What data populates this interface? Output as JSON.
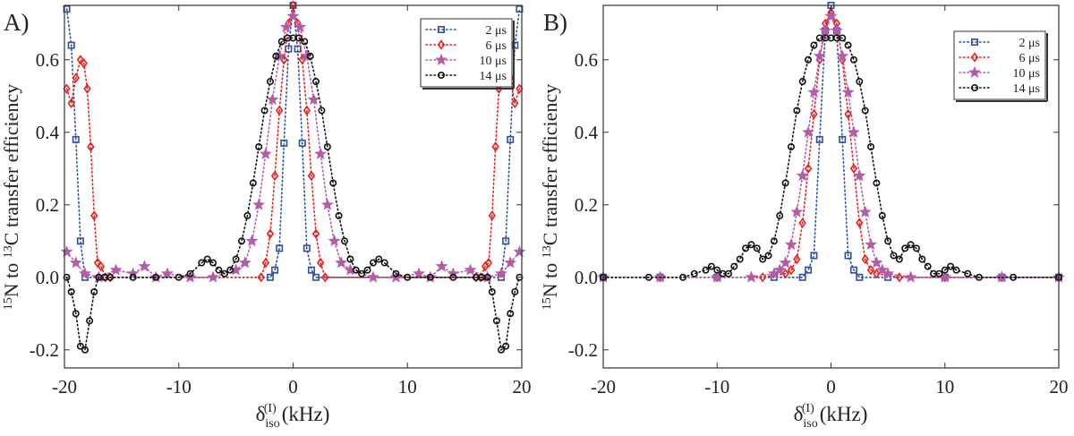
{
  "colors": {
    "2us": "#2e4fa0",
    "6us": "#e8201c",
    "10us": "#b35ca8",
    "14us": "#111111",
    "axis": "#333333"
  },
  "chart_data": [
    {
      "panel_label": "A)",
      "type": "scatter",
      "xlabel_symbol": "δ",
      "xlabel_sub": "iso",
      "xlabel_sup": "(I)",
      "xlabel_unit": "(kHz)",
      "ylabel_parts": [
        "15",
        "N to ",
        "13",
        "C transfer efficiency"
      ],
      "xlim": [
        -20,
        20
      ],
      "ylim": [
        -0.25,
        0.75
      ],
      "xticks": [
        -20,
        -10,
        0,
        10,
        20
      ],
      "yticks": [
        -0.2,
        0,
        0.2,
        0.4,
        0.6
      ],
      "ytick_labels": [
        "-0.2",
        "0.0",
        "0.2",
        "0.4",
        "0.6"
      ],
      "legend": [
        "2 μs",
        "6 μs",
        "10 μs",
        "14 μs"
      ],
      "legend_position": "top-right",
      "series": [
        {
          "name": "2 μs",
          "key": "2us",
          "marker": "square",
          "x": [
            -19.8,
            -19.4,
            -19.0,
            -18.6,
            -18.2,
            -2.0,
            -1.6,
            -1.2,
            -0.8,
            -0.4,
            0,
            0.4,
            0.8,
            1.2,
            1.6,
            2.0,
            18.2,
            18.6,
            19.0,
            19.4,
            19.8
          ],
          "y": [
            0.74,
            0.64,
            0.38,
            0.1,
            0.0,
            0.0,
            0.02,
            0.08,
            0.37,
            0.63,
            0.75,
            0.63,
            0.37,
            0.08,
            0.02,
            0.0,
            0.0,
            0.1,
            0.38,
            0.64,
            0.74
          ]
        },
        {
          "name": "6 μs",
          "key": "6us",
          "marker": "diamond",
          "x": [
            -19.8,
            -19.4,
            -19.0,
            -18.6,
            -18.3,
            -18.0,
            -17.7,
            -17.4,
            -17.1,
            -16.8,
            -16.4,
            -16.0,
            -2.8,
            -2.4,
            -2.0,
            -1.6,
            -1.2,
            -0.8,
            -0.4,
            0,
            0.4,
            0.8,
            1.2,
            1.6,
            2.0,
            2.4,
            2.8,
            16.0,
            16.4,
            16.8,
            17.1,
            17.4,
            17.7,
            18.0,
            18.3,
            18.6,
            19.0,
            19.4,
            19.8
          ],
          "y": [
            0.52,
            0.48,
            0.55,
            0.6,
            0.59,
            0.52,
            0.36,
            0.17,
            0.04,
            0.03,
            0.0,
            0.0,
            0.0,
            0.04,
            0.12,
            0.28,
            0.46,
            0.6,
            0.7,
            0.75,
            0.7,
            0.6,
            0.46,
            0.28,
            0.12,
            0.04,
            0.0,
            0.0,
            0.0,
            0.03,
            0.04,
            0.17,
            0.36,
            0.52,
            0.59,
            0.6,
            0.55,
            0.48,
            0.52
          ]
        },
        {
          "name": "10 μs",
          "key": "10us",
          "marker": "star",
          "x": [
            -19.8,
            -19.0,
            -18.2,
            -17.0,
            -15.5,
            -14.0,
            -13.0,
            -12.0,
            -11.0,
            -9.0,
            -7.0,
            -5.0,
            -4.2,
            -3.6,
            -3.0,
            -2.4,
            -1.8,
            -1.2,
            -0.6,
            0,
            0.6,
            1.2,
            1.8,
            2.4,
            3.0,
            3.6,
            4.2,
            5.0,
            7.0,
            9.0,
            11.0,
            12.0,
            13.0,
            14.0,
            15.5,
            17.0,
            18.2,
            19.0,
            19.8
          ],
          "y": [
            0.07,
            0.04,
            0.01,
            0.0,
            0.02,
            0.01,
            0.03,
            0.0,
            0.01,
            0.0,
            0.0,
            0.02,
            0.04,
            0.1,
            0.2,
            0.34,
            0.49,
            0.61,
            0.69,
            0.72,
            0.69,
            0.61,
            0.49,
            0.34,
            0.2,
            0.1,
            0.04,
            0.02,
            0.0,
            0.0,
            0.01,
            0.0,
            0.03,
            0.01,
            0.02,
            0.0,
            0.01,
            0.04,
            0.07
          ]
        },
        {
          "name": "14 μs",
          "key": "14us",
          "marker": "circle",
          "x": [
            -19.8,
            -19.4,
            -19.0,
            -18.6,
            -18.2,
            -17.8,
            -17.4,
            -17.0,
            -16.5,
            -16.0,
            -14.0,
            -12.0,
            -10.0,
            -9.0,
            -8.0,
            -7.5,
            -7.0,
            -6.5,
            -6.0,
            -5.5,
            -5.0,
            -4.5,
            -4.0,
            -3.5,
            -3.0,
            -2.5,
            -2.0,
            -1.5,
            -1.0,
            -0.5,
            0,
            0.5,
            1.0,
            1.5,
            2.0,
            2.5,
            3.0,
            3.5,
            4.0,
            4.5,
            5.0,
            5.5,
            6.0,
            6.5,
            7.0,
            7.5,
            8.0,
            9.0,
            10.0,
            12.0,
            14.0,
            16.0,
            16.5,
            17.0,
            17.4,
            17.8,
            18.2,
            18.6,
            19.0,
            19.4,
            19.8
          ],
          "y": [
            0.0,
            -0.04,
            -0.1,
            -0.19,
            -0.2,
            -0.12,
            -0.04,
            0.0,
            0.0,
            0.0,
            0.0,
            0.0,
            0.0,
            0.01,
            0.04,
            0.05,
            0.04,
            0.02,
            0.01,
            0.02,
            0.05,
            0.1,
            0.17,
            0.26,
            0.36,
            0.46,
            0.54,
            0.61,
            0.65,
            0.66,
            0.66,
            0.66,
            0.65,
            0.61,
            0.54,
            0.46,
            0.36,
            0.26,
            0.17,
            0.1,
            0.05,
            0.02,
            0.01,
            0.02,
            0.04,
            0.05,
            0.04,
            0.01,
            0.0,
            0.0,
            0.0,
            0.0,
            0.0,
            0.0,
            -0.04,
            -0.12,
            -0.2,
            -0.19,
            -0.1,
            -0.04,
            0.0
          ]
        }
      ]
    },
    {
      "panel_label": "B)",
      "type": "scatter",
      "xlabel_symbol": "δ",
      "xlabel_sub": "iso",
      "xlabel_sup": "(I)",
      "xlabel_unit": "(kHz)",
      "ylabel_parts": [
        "15",
        "N to ",
        "13",
        "C transfer efficiency"
      ],
      "xlim": [
        -20,
        20
      ],
      "ylim": [
        -0.25,
        0.75
      ],
      "xticks": [
        -20,
        -10,
        0,
        10,
        20
      ],
      "yticks": [
        -0.2,
        0,
        0.2,
        0.4,
        0.6
      ],
      "ytick_labels": [
        "-0.2",
        "0.0",
        "0.2",
        "0.4",
        "0.6"
      ],
      "legend": [
        "2 μs",
        "6 μs",
        "10 μs",
        "14 μs"
      ],
      "legend_position": "top-right",
      "series": [
        {
          "name": "2 μs",
          "key": "2us",
          "marker": "square",
          "x": [
            -20,
            -15,
            -10,
            -5,
            -2.5,
            -2.0,
            -1.5,
            -1.0,
            -0.5,
            0,
            0.5,
            1.0,
            1.5,
            2.0,
            2.5,
            5,
            10,
            15,
            20
          ],
          "y": [
            0.0,
            0.0,
            0.0,
            0.0,
            0.0,
            0.02,
            0.06,
            0.38,
            0.68,
            0.75,
            0.68,
            0.38,
            0.06,
            0.02,
            0.0,
            0.0,
            0.0,
            0.0,
            0.0
          ]
        },
        {
          "name": "6 μs",
          "key": "6us",
          "marker": "diamond",
          "x": [
            -20,
            -15,
            -10,
            -6,
            -4.0,
            -3.5,
            -3.0,
            -2.5,
            -2.0,
            -1.5,
            -1.0,
            -0.5,
            0,
            0.5,
            1.0,
            1.5,
            2.0,
            2.5,
            3.0,
            3.5,
            4.0,
            6,
            10,
            15,
            20
          ],
          "y": [
            0.0,
            0.0,
            0.0,
            0.0,
            0.01,
            0.02,
            0.05,
            0.15,
            0.3,
            0.45,
            0.6,
            0.7,
            0.73,
            0.7,
            0.6,
            0.45,
            0.3,
            0.15,
            0.05,
            0.02,
            0.01,
            0.0,
            0.0,
            0.0,
            0.0
          ]
        },
        {
          "name": "10 μs",
          "key": "10us",
          "marker": "star",
          "x": [
            -20,
            -15,
            -10,
            -7,
            -5.0,
            -4.5,
            -4.0,
            -3.5,
            -3.0,
            -2.5,
            -2.0,
            -1.5,
            -1.0,
            -0.5,
            0,
            0.5,
            1.0,
            1.5,
            2.0,
            2.5,
            3.0,
            3.5,
            4.0,
            4.5,
            5.0,
            7,
            10,
            15,
            20
          ],
          "y": [
            0.0,
            0.0,
            0.0,
            0.0,
            0.01,
            0.02,
            0.04,
            0.09,
            0.18,
            0.28,
            0.4,
            0.51,
            0.61,
            0.68,
            0.72,
            0.68,
            0.61,
            0.51,
            0.4,
            0.28,
            0.18,
            0.09,
            0.04,
            0.02,
            0.01,
            0.0,
            0.0,
            0.0,
            0.0
          ]
        },
        {
          "name": "14 μs",
          "key": "14us",
          "marker": "circle",
          "x": [
            -20,
            -16,
            -13,
            -12,
            -11,
            -10.5,
            -10,
            -9.5,
            -9,
            -8.5,
            -8,
            -7.5,
            -7,
            -6.5,
            -6,
            -5.5,
            -5,
            -4.5,
            -4,
            -3.5,
            -3,
            -2.5,
            -2,
            -1.5,
            -1,
            -0.5,
            0,
            0.5,
            1,
            1.5,
            2,
            2.5,
            3,
            3.5,
            4,
            4.5,
            5,
            5.5,
            6,
            6.5,
            7,
            7.5,
            8,
            8.5,
            9,
            9.5,
            10,
            10.5,
            11,
            12,
            13,
            16,
            20
          ],
          "y": [
            0.0,
            0.0,
            0.0,
            0.01,
            0.02,
            0.03,
            0.02,
            0.01,
            0.01,
            0.03,
            0.05,
            0.08,
            0.09,
            0.08,
            0.05,
            0.06,
            0.1,
            0.17,
            0.26,
            0.36,
            0.46,
            0.54,
            0.6,
            0.64,
            0.66,
            0.66,
            0.66,
            0.66,
            0.66,
            0.64,
            0.6,
            0.54,
            0.46,
            0.36,
            0.26,
            0.17,
            0.1,
            0.06,
            0.05,
            0.08,
            0.09,
            0.08,
            0.05,
            0.03,
            0.01,
            0.01,
            0.02,
            0.03,
            0.02,
            0.01,
            0.0,
            0.0,
            0.0
          ]
        }
      ]
    }
  ]
}
